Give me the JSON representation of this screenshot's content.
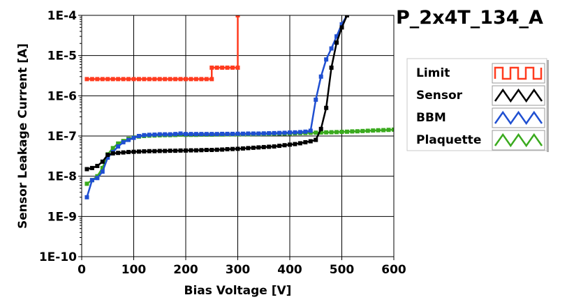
{
  "chart_data": {
    "type": "line",
    "title": "P_2x4T_134_A",
    "xlabel": "Bias Voltage [V]",
    "ylabel": "Sensor Leakage Current [A]",
    "xlim": [
      0,
      600
    ],
    "ylim": [
      1e-10,
      0.0001
    ],
    "yscale": "log",
    "grid": true,
    "legend_position": "right",
    "x_ticks": [
      0,
      100,
      200,
      300,
      400,
      500,
      600
    ],
    "x_tick_labels": [
      "0",
      "100",
      "200",
      "300",
      "400",
      "500",
      "600"
    ],
    "y_ticks": [
      0.0001,
      1e-05,
      1e-06,
      1e-07,
      1e-08,
      1e-09,
      1e-10
    ],
    "y_tick_labels": [
      "1E-4",
      "1E-5",
      "1E-6",
      "1E-7",
      "1E-8",
      "1E-9",
      "1E-10"
    ],
    "series": [
      {
        "name": "Limit",
        "color": "#ff3b1f",
        "points": [
          [
            10,
            2.6e-06
          ],
          [
            20,
            2.6e-06
          ],
          [
            30,
            2.6e-06
          ],
          [
            40,
            2.6e-06
          ],
          [
            50,
            2.6e-06
          ],
          [
            60,
            2.6e-06
          ],
          [
            70,
            2.6e-06
          ],
          [
            80,
            2.6e-06
          ],
          [
            90,
            2.6e-06
          ],
          [
            100,
            2.6e-06
          ],
          [
            110,
            2.6e-06
          ],
          [
            120,
            2.6e-06
          ],
          [
            130,
            2.6e-06
          ],
          [
            140,
            2.6e-06
          ],
          [
            150,
            2.6e-06
          ],
          [
            160,
            2.6e-06
          ],
          [
            170,
            2.6e-06
          ],
          [
            180,
            2.6e-06
          ],
          [
            190,
            2.6e-06
          ],
          [
            200,
            2.6e-06
          ],
          [
            210,
            2.6e-06
          ],
          [
            220,
            2.6e-06
          ],
          [
            230,
            2.6e-06
          ],
          [
            240,
            2.6e-06
          ],
          [
            250,
            2.6e-06
          ],
          [
            250,
            5e-06
          ],
          [
            260,
            5e-06
          ],
          [
            270,
            5e-06
          ],
          [
            280,
            5e-06
          ],
          [
            290,
            5e-06
          ],
          [
            300,
            5e-06
          ],
          [
            300,
            0.0001
          ]
        ]
      },
      {
        "name": "Sensor",
        "color": "#000000",
        "points": [
          [
            10,
            1.5e-08
          ],
          [
            20,
            1.6e-08
          ],
          [
            30,
            1.8e-08
          ],
          [
            40,
            2.3e-08
          ],
          [
            50,
            3.4e-08
          ],
          [
            60,
            3.7e-08
          ],
          [
            70,
            3.8e-08
          ],
          [
            80,
            3.9e-08
          ],
          [
            90,
            4e-08
          ],
          [
            100,
            4.05e-08
          ],
          [
            110,
            4.1e-08
          ],
          [
            120,
            4.15e-08
          ],
          [
            130,
            4.2e-08
          ],
          [
            140,
            4.2e-08
          ],
          [
            150,
            4.25e-08
          ],
          [
            160,
            4.25e-08
          ],
          [
            170,
            4.3e-08
          ],
          [
            180,
            4.3e-08
          ],
          [
            190,
            4.35e-08
          ],
          [
            200,
            4.35e-08
          ],
          [
            210,
            4.4e-08
          ],
          [
            220,
            4.4e-08
          ],
          [
            230,
            4.45e-08
          ],
          [
            240,
            4.5e-08
          ],
          [
            250,
            4.5e-08
          ],
          [
            260,
            4.55e-08
          ],
          [
            270,
            4.6e-08
          ],
          [
            280,
            4.7e-08
          ],
          [
            290,
            4.75e-08
          ],
          [
            300,
            4.8e-08
          ],
          [
            310,
            4.9e-08
          ],
          [
            320,
            5e-08
          ],
          [
            330,
            5.1e-08
          ],
          [
            340,
            5.2e-08
          ],
          [
            350,
            5.3e-08
          ],
          [
            360,
            5.4e-08
          ],
          [
            370,
            5.5e-08
          ],
          [
            380,
            5.7e-08
          ],
          [
            390,
            5.9e-08
          ],
          [
            400,
            6.1e-08
          ],
          [
            410,
            6.3e-08
          ],
          [
            420,
            6.6e-08
          ],
          [
            430,
            7e-08
          ],
          [
            440,
            7.4e-08
          ],
          [
            450,
            8e-08
          ],
          [
            460,
            1.5e-07
          ],
          [
            470,
            5e-07
          ],
          [
            480,
            5e-06
          ],
          [
            490,
            2.1e-05
          ],
          [
            500,
            5e-05
          ],
          [
            510,
            0.0001
          ]
        ]
      },
      {
        "name": "BBM",
        "color": "#1f4fd1",
        "points": [
          [
            10,
            3e-09
          ],
          [
            20,
            8e-09
          ],
          [
            30,
            9e-09
          ],
          [
            40,
            1.3e-08
          ],
          [
            50,
            2.9e-08
          ],
          [
            60,
            4e-08
          ],
          [
            70,
            5.5e-08
          ],
          [
            80,
            7e-08
          ],
          [
            90,
            8e-08
          ],
          [
            100,
            9e-08
          ],
          [
            110,
            1e-07
          ],
          [
            120,
            1.05e-07
          ],
          [
            130,
            1.07e-07
          ],
          [
            140,
            1.08e-07
          ],
          [
            150,
            1.1e-07
          ],
          [
            160,
            1.1e-07
          ],
          [
            170,
            1.1e-07
          ],
          [
            180,
            1.12e-07
          ],
          [
            190,
            1.15e-07
          ],
          [
            200,
            1.12e-07
          ],
          [
            210,
            1.12e-07
          ],
          [
            220,
            1.12e-07
          ],
          [
            230,
            1.12e-07
          ],
          [
            240,
            1.12e-07
          ],
          [
            250,
            1.12e-07
          ],
          [
            260,
            1.12e-07
          ],
          [
            270,
            1.13e-07
          ],
          [
            280,
            1.13e-07
          ],
          [
            290,
            1.13e-07
          ],
          [
            300,
            1.14e-07
          ],
          [
            310,
            1.14e-07
          ],
          [
            320,
            1.15e-07
          ],
          [
            330,
            1.15e-07
          ],
          [
            340,
            1.15e-07
          ],
          [
            350,
            1.16e-07
          ],
          [
            360,
            1.17e-07
          ],
          [
            370,
            1.18e-07
          ],
          [
            380,
            1.19e-07
          ],
          [
            390,
            1.2e-07
          ],
          [
            400,
            1.22e-07
          ],
          [
            410,
            1.23e-07
          ],
          [
            420,
            1.25e-07
          ],
          [
            430,
            1.28e-07
          ],
          [
            440,
            1.35e-07
          ],
          [
            450,
            8e-07
          ],
          [
            460,
            3e-06
          ],
          [
            470,
            8e-06
          ],
          [
            480,
            1.5e-05
          ],
          [
            490,
            3e-05
          ],
          [
            500,
            6e-05
          ],
          [
            510,
            0.0001
          ]
        ]
      },
      {
        "name": "Plaquette",
        "color": "#3aaa1e",
        "points": [
          [
            10,
            6.5e-09
          ],
          [
            20,
            8e-09
          ],
          [
            30,
            1e-08
          ],
          [
            40,
            1.6e-08
          ],
          [
            50,
            3.5e-08
          ],
          [
            60,
            5e-08
          ],
          [
            70,
            6.5e-08
          ],
          [
            80,
            7.5e-08
          ],
          [
            90,
            8.5e-08
          ],
          [
            100,
            9.2e-08
          ],
          [
            110,
            9.7e-08
          ],
          [
            120,
            1e-07
          ],
          [
            130,
            1.02e-07
          ],
          [
            140,
            1.03e-07
          ],
          [
            150,
            1.04e-07
          ],
          [
            160,
            1.05e-07
          ],
          [
            170,
            1.05e-07
          ],
          [
            180,
            1.06e-07
          ],
          [
            190,
            1.08e-07
          ],
          [
            200,
            1.07e-07
          ],
          [
            210,
            1.07e-07
          ],
          [
            220,
            1.07e-07
          ],
          [
            230,
            1.08e-07
          ],
          [
            240,
            1.08e-07
          ],
          [
            250,
            1.08e-07
          ],
          [
            260,
            1.09e-07
          ],
          [
            270,
            1.09e-07
          ],
          [
            280,
            1.1e-07
          ],
          [
            290,
            1.1e-07
          ],
          [
            300,
            1.1e-07
          ],
          [
            310,
            1.11e-07
          ],
          [
            320,
            1.11e-07
          ],
          [
            330,
            1.12e-07
          ],
          [
            340,
            1.12e-07
          ],
          [
            350,
            1.13e-07
          ],
          [
            360,
            1.13e-07
          ],
          [
            370,
            1.14e-07
          ],
          [
            380,
            1.15e-07
          ],
          [
            390,
            1.15e-07
          ],
          [
            400,
            1.16e-07
          ],
          [
            410,
            1.17e-07
          ],
          [
            420,
            1.18e-07
          ],
          [
            430,
            1.19e-07
          ],
          [
            440,
            1.2e-07
          ],
          [
            450,
            1.21e-07
          ],
          [
            460,
            1.22e-07
          ],
          [
            470,
            1.23e-07
          ],
          [
            480,
            1.24e-07
          ],
          [
            490,
            1.25e-07
          ],
          [
            500,
            1.27e-07
          ],
          [
            510,
            1.28e-07
          ],
          [
            520,
            1.3e-07
          ],
          [
            530,
            1.31e-07
          ],
          [
            540,
            1.33e-07
          ],
          [
            550,
            1.35e-07
          ],
          [
            560,
            1.37e-07
          ],
          [
            570,
            1.39e-07
          ],
          [
            580,
            1.4e-07
          ],
          [
            590,
            1.42e-07
          ],
          [
            600,
            1.44e-07
          ]
        ]
      }
    ]
  }
}
